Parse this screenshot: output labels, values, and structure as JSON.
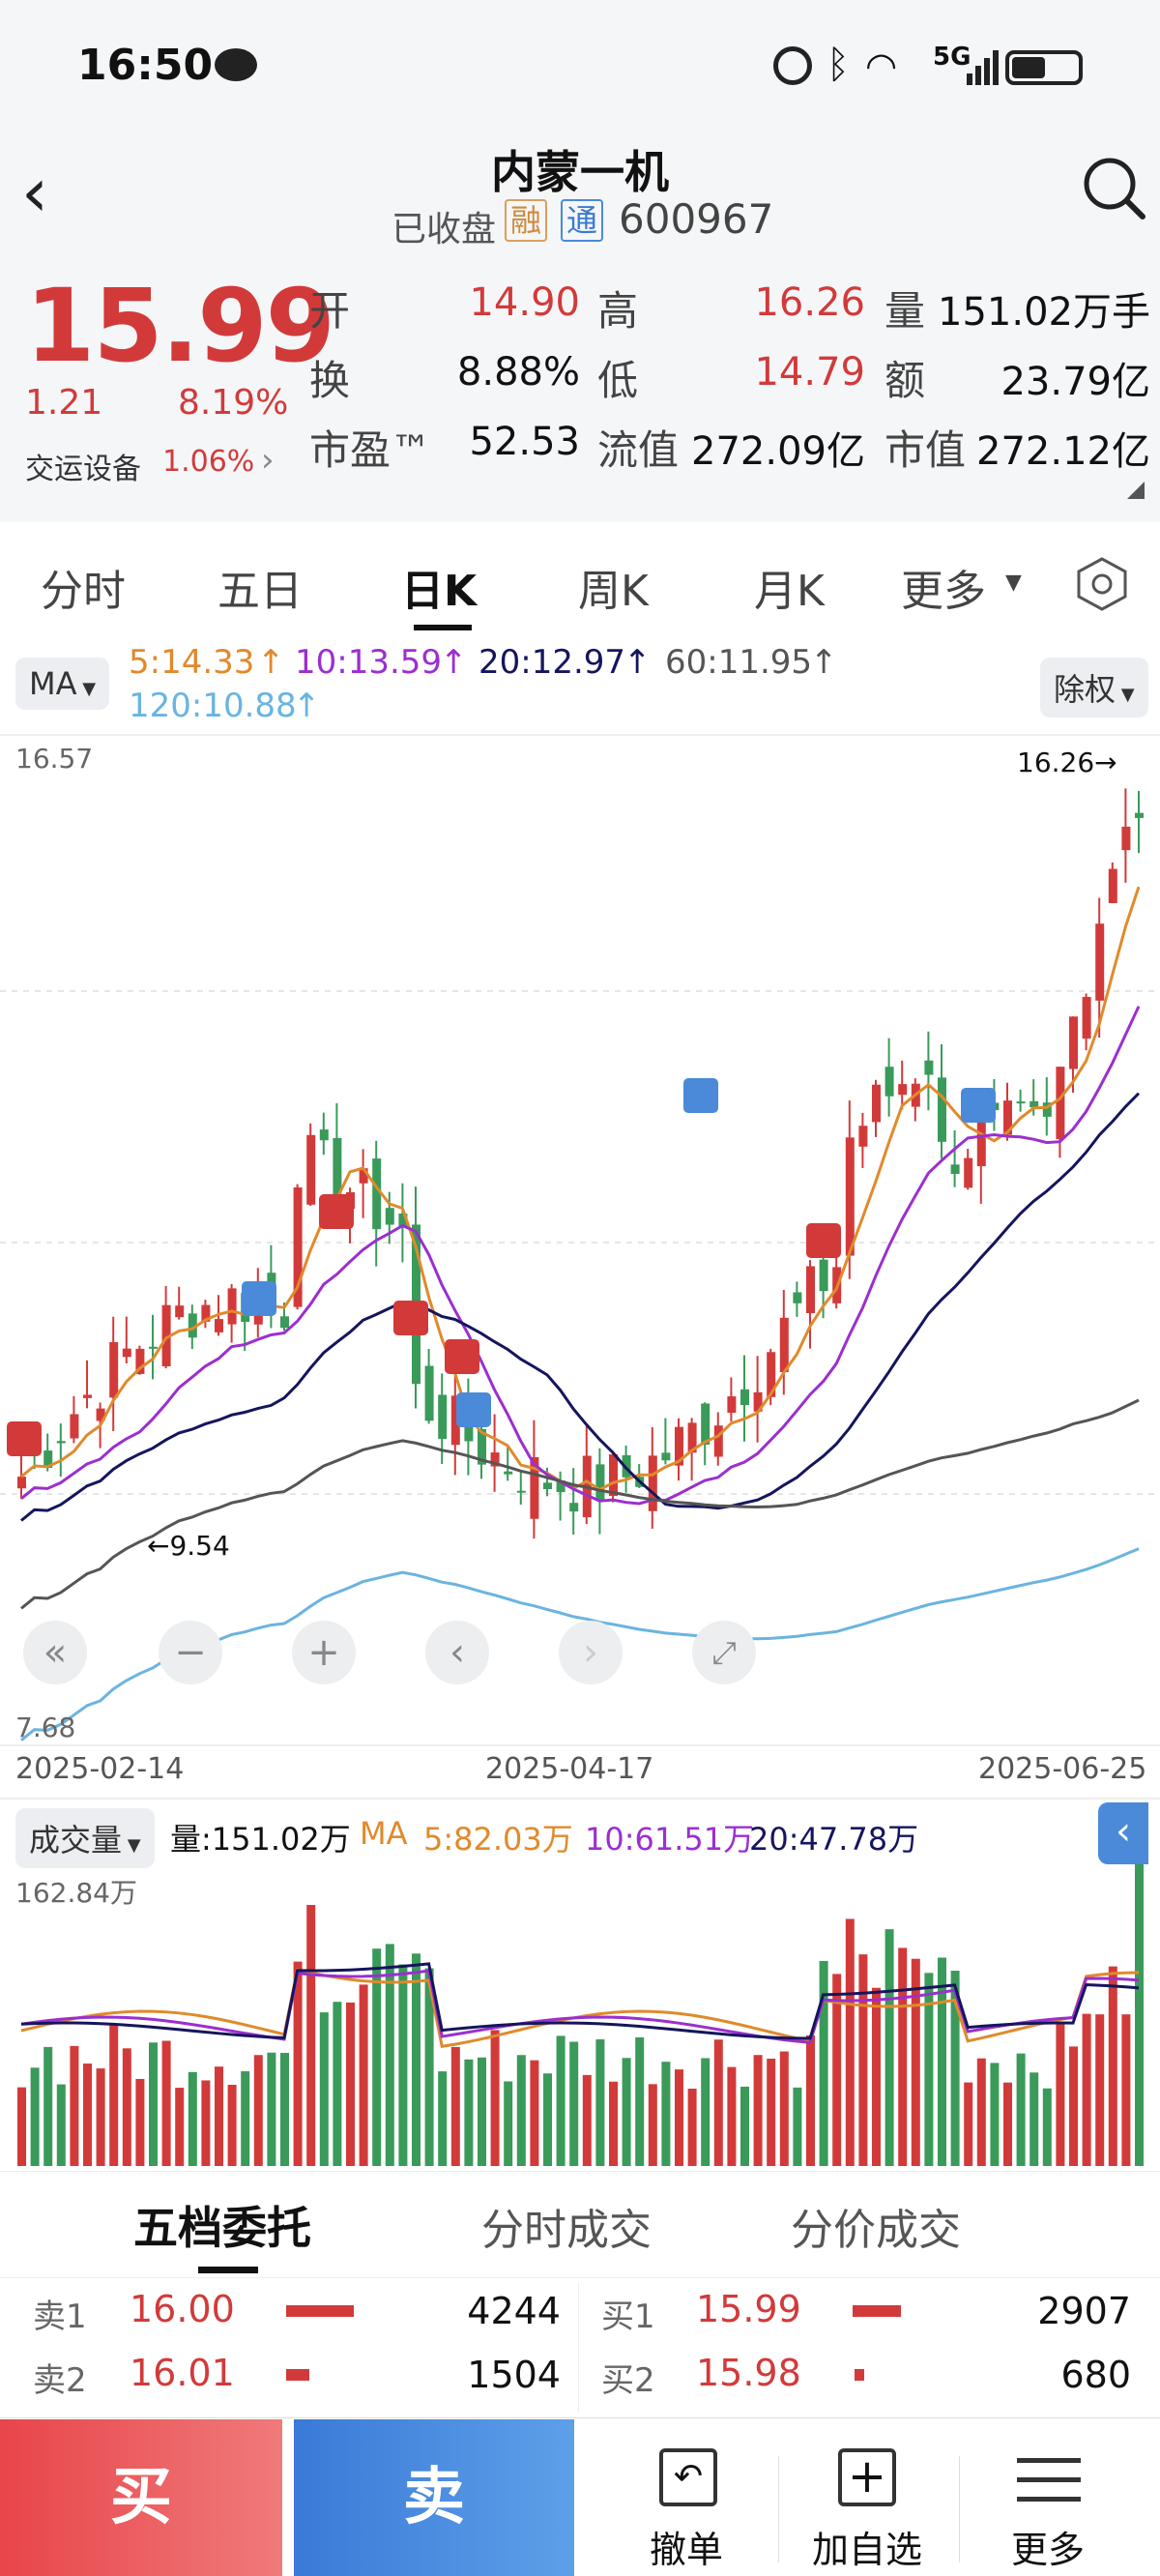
{
  "status": {
    "time": "16:50",
    "signal": "5G"
  },
  "header": {
    "title": "内蒙一机",
    "state": "已收盘",
    "tag1": "融",
    "tag2": "通",
    "code": "600967"
  },
  "quote": {
    "price": "15.99",
    "change": "1.21",
    "change_pct": "8.19%",
    "sector": "交运设备",
    "sector_pct": "1.06%",
    "open_label": "开",
    "open": "14.90",
    "high_label": "高",
    "high": "16.26",
    "vol_label": "量",
    "vol": "151.02万手",
    "turn_label": "换",
    "turn": "8.88%",
    "low_label": "低",
    "low": "14.79",
    "amt_label": "额",
    "amt": "23.79亿",
    "pe_label": "市盈™",
    "pe": "52.53",
    "float_label": "流值",
    "float": "272.09亿",
    "mcap_label": "市值",
    "mcap": "272.12亿"
  },
  "tabs": [
    "分时",
    "五日",
    "日K",
    "周K",
    "月K",
    "更多"
  ],
  "ma": {
    "button": "MA",
    "ma5": "5:14.33",
    "ma10": "10:13.59",
    "ma20": "20:12.97",
    "ma60": "60:11.95",
    "ma120": "120:10.88",
    "adjust": "除权"
  },
  "kline": {
    "ymax": "16.57",
    "ymin": "7.68",
    "high_marker": "16.26",
    "low_marker": "9.54",
    "dates": [
      "2025-02-14",
      "2025-04-17",
      "2025-06-25"
    ]
  },
  "volume": {
    "button": "成交量",
    "vol": "量:151.02万",
    "ma_label": "MA",
    "ma5": "5:82.03万",
    "ma10": "10:61.51万",
    "ma20": "20:47.78万",
    "ymax": "162.84万"
  },
  "book_tabs": [
    "五档委托",
    "分时成交",
    "分价成交"
  ],
  "book_left": [
    {
      "label": "卖1",
      "price": "16.00",
      "qty": "4244"
    },
    {
      "label": "卖2",
      "price": "16.01",
      "qty": "1504"
    }
  ],
  "book_right": [
    {
      "label": "买1",
      "price": "15.99",
      "qty": "2907"
    },
    {
      "label": "买2",
      "price": "15.98",
      "qty": "680"
    }
  ],
  "actions": {
    "buy": "买",
    "sell": "卖",
    "cancel": "撤单",
    "watch": "加自选",
    "more": "更多"
  },
  "colors": {
    "up": "#d23a3a",
    "down": "#3a9a5a",
    "ma5": "#e08a2c",
    "ma10": "#9b2fd0",
    "ma20": "#15155e",
    "ma60": "#555555",
    "ma120": "#6ab4e0"
  }
}
